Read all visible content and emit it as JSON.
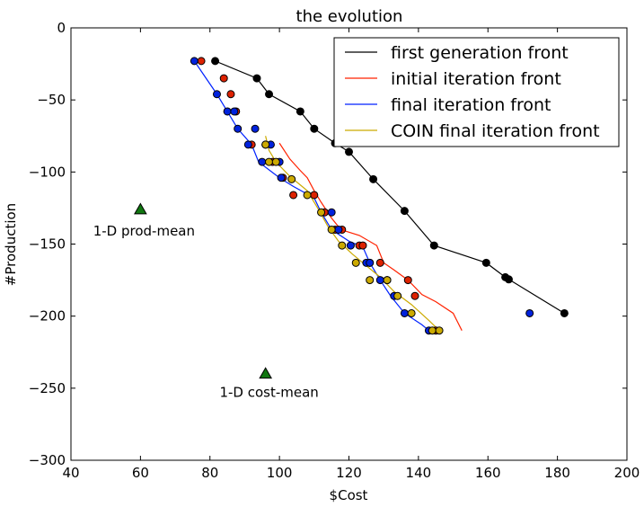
{
  "chart_data": {
    "type": "line",
    "title": "the evolution",
    "xlabel": "$Cost",
    "ylabel": "#Production",
    "xlim": [
      40,
      200
    ],
    "ylim": [
      -300,
      0
    ],
    "xticks": [
      40,
      60,
      80,
      100,
      120,
      140,
      160,
      180,
      200
    ],
    "yticks": [
      0,
      -50,
      -100,
      -150,
      -200,
      -250,
      -300
    ],
    "grid": false,
    "legend_position": "top-right",
    "series": [
      {
        "name": "first generation front",
        "color": "#000000",
        "marker_color": "#000000",
        "line": [
          [
            81.5,
            -23
          ],
          [
            93.5,
            -35
          ],
          [
            97,
            -46
          ],
          [
            106,
            -58
          ],
          [
            110,
            -70
          ],
          [
            116,
            -80
          ],
          [
            120,
            -86
          ],
          [
            127,
            -105
          ],
          [
            136,
            -127
          ],
          [
            144.5,
            -151
          ],
          [
            159.5,
            -163
          ],
          [
            165,
            -173
          ],
          [
            166,
            -174.5
          ],
          [
            182,
            -198
          ]
        ],
        "points": [
          [
            81.5,
            -23
          ],
          [
            93.5,
            -35
          ],
          [
            97,
            -46
          ],
          [
            106,
            -58
          ],
          [
            110,
            -70
          ],
          [
            116,
            -80
          ],
          [
            120,
            -86
          ],
          [
            127,
            -105
          ],
          [
            136,
            -127
          ],
          [
            144.5,
            -151
          ],
          [
            159.5,
            -163
          ],
          [
            165,
            -173
          ],
          [
            166,
            -174.5
          ],
          [
            182,
            -198
          ]
        ]
      },
      {
        "name": "initial iteration front",
        "color": "#ff2200",
        "marker_color": "#dd2200",
        "line": [
          [
            100,
            -80
          ],
          [
            103,
            -91
          ],
          [
            106,
            -99
          ],
          [
            108,
            -104
          ],
          [
            110,
            -113
          ],
          [
            112,
            -121
          ],
          [
            115,
            -132
          ],
          [
            117,
            -138
          ],
          [
            119,
            -141
          ],
          [
            123,
            -144
          ],
          [
            128,
            -151
          ],
          [
            130,
            -163
          ],
          [
            133,
            -168
          ],
          [
            137,
            -175
          ],
          [
            141,
            -185
          ],
          [
            145,
            -190
          ],
          [
            150,
            -198
          ],
          [
            152.5,
            -210
          ]
        ],
        "points": [
          [
            77.5,
            -23
          ],
          [
            84,
            -35
          ],
          [
            86,
            -46
          ],
          [
            87.5,
            -58
          ],
          [
            92,
            -81
          ],
          [
            98,
            -93
          ],
          [
            101,
            -104
          ],
          [
            104,
            -116
          ],
          [
            110,
            -116
          ],
          [
            113,
            -128
          ],
          [
            116,
            -140
          ],
          [
            118,
            -140
          ],
          [
            123,
            -151
          ],
          [
            124,
            -151
          ],
          [
            126,
            -163
          ],
          [
            129,
            -163
          ],
          [
            131,
            -175
          ],
          [
            137,
            -175
          ],
          [
            139,
            -186
          ],
          [
            145,
            -210
          ]
        ]
      },
      {
        "name": "final iteration front",
        "color": "#0022ff",
        "marker_color": "#0022dd",
        "line": [
          [
            75.5,
            -23
          ],
          [
            82,
            -46
          ],
          [
            85,
            -58
          ],
          [
            88,
            -70
          ],
          [
            92,
            -81
          ],
          [
            94,
            -93
          ],
          [
            100,
            -104
          ],
          [
            104,
            -110
          ],
          [
            110,
            -118
          ],
          [
            112,
            -128
          ],
          [
            115,
            -140
          ],
          [
            120,
            -148
          ],
          [
            124,
            -152
          ],
          [
            126,
            -163
          ],
          [
            129,
            -175
          ],
          [
            132,
            -186
          ],
          [
            136,
            -198
          ],
          [
            141,
            -206
          ],
          [
            143,
            -210
          ]
        ],
        "points": [
          [
            75.5,
            -23
          ],
          [
            82,
            -46
          ],
          [
            85,
            -58
          ],
          [
            87,
            -58
          ],
          [
            88,
            -70
          ],
          [
            91,
            -81
          ],
          [
            93,
            -70
          ],
          [
            95,
            -93
          ],
          [
            96,
            -81
          ],
          [
            97.5,
            -81
          ],
          [
            100,
            -93
          ],
          [
            100.5,
            -104
          ],
          [
            115,
            -128
          ],
          [
            117,
            -140
          ],
          [
            120.5,
            -151
          ],
          [
            125,
            -163
          ],
          [
            126,
            -163
          ],
          [
            129,
            -175
          ],
          [
            133,
            -186
          ],
          [
            136,
            -198
          ],
          [
            143,
            -210
          ],
          [
            172,
            -198
          ]
        ]
      },
      {
        "name": "COIN final iteration front",
        "color": "#ccaa00",
        "marker_color": "#ccaa00",
        "line": [
          [
            96,
            -75
          ],
          [
            97,
            -85
          ],
          [
            99,
            -93
          ],
          [
            103,
            -103
          ],
          [
            108,
            -113
          ],
          [
            111,
            -125
          ],
          [
            114,
            -138
          ],
          [
            117,
            -148
          ],
          [
            121,
            -157
          ],
          [
            125,
            -165
          ],
          [
            129,
            -173
          ],
          [
            133,
            -183
          ],
          [
            138,
            -192
          ],
          [
            143,
            -203
          ],
          [
            146,
            -210
          ]
        ],
        "points": [
          [
            96,
            -81
          ],
          [
            97,
            -93
          ],
          [
            99,
            -93
          ],
          [
            103.5,
            -105
          ],
          [
            108,
            -116
          ],
          [
            112,
            -128
          ],
          [
            115,
            -140
          ],
          [
            118,
            -151
          ],
          [
            122,
            -163
          ],
          [
            126,
            -175
          ],
          [
            131,
            -175
          ],
          [
            134,
            -186
          ],
          [
            138,
            -198
          ],
          [
            144,
            -210
          ],
          [
            146,
            -210
          ]
        ]
      }
    ],
    "markers": [
      {
        "x": 60,
        "y": -126,
        "shape": "triangle",
        "color": "#117711"
      },
      {
        "x": 96,
        "y": -240,
        "shape": "triangle",
        "color": "#117711"
      }
    ],
    "annotations": [
      {
        "text": "1-D prod-mean",
        "x": 60,
        "y": -141
      },
      {
        "text": "1-D cost-mean",
        "x": 96,
        "y": -253
      }
    ]
  }
}
